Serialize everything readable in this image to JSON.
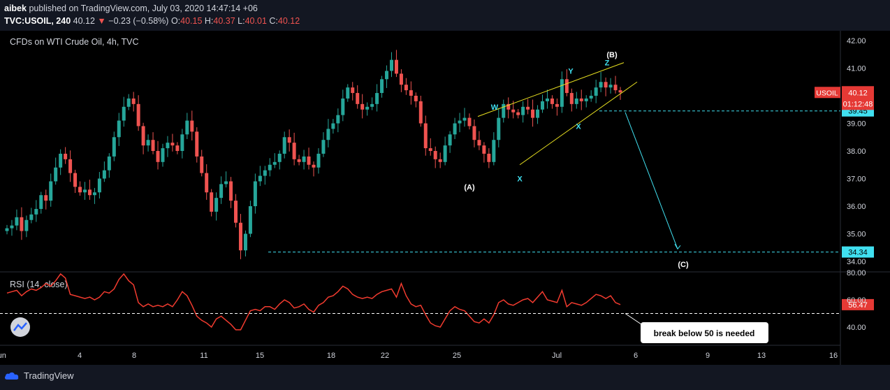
{
  "header": {
    "author": "aibek",
    "published_text": "published on TradingView.com, July 03, 2020 14:47:14 +06",
    "symbol_interval": "TVC:USOIL, 240",
    "last": "40.12",
    "change": "−0.23 (−0.58%)",
    "open_label": "O:",
    "open": "40.15",
    "high_label": "H:",
    "high": "40.37",
    "low_label": "L:",
    "low": "40.01",
    "close_label": "C:",
    "close": "40.12"
  },
  "chart_title": "CFDs on WTI Crude Oil, 4h, TVC",
  "indicator_title": "RSI (14, close)",
  "footer": {
    "brand": "TradingView"
  },
  "colors": {
    "background": "#131722",
    "up": "#26a69a",
    "down": "#ef5350",
    "rsi": "#f23b2f",
    "annotation": "#40e0f0",
    "trendline": "#e8e020",
    "price_tag": "#e53935"
  },
  "chart_data": [
    {
      "type": "candlestick",
      "title": "CFDs on WTI Crude Oil, 4h, TVC",
      "x_tick_labels": [
        "Jun",
        "4",
        "8",
        "11",
        "15",
        "18",
        "22",
        "25",
        "Jul",
        "6",
        "9",
        "13",
        "16"
      ],
      "y_tick_labels": [
        "42.00",
        "41.00",
        "40.00",
        "39.00",
        "38.00",
        "37.00",
        "36.00",
        "35.00",
        "34.00"
      ],
      "ylim": [
        33.6,
        42.4
      ],
      "grid": false,
      "ohlc_close_path": [
        35.2,
        35.3,
        35.6,
        35.1,
        35.5,
        35.7,
        35.9,
        36.4,
        36.2,
        36.9,
        37.4,
        37.9,
        37.7,
        37.2,
        36.7,
        36.5,
        36.6,
        36.4,
        36.5,
        37.0,
        37.3,
        37.8,
        38.5,
        39.1,
        39.6,
        39.9,
        39.7,
        38.9,
        38.2,
        38.4,
        38.0,
        37.6,
        38.1,
        38.3,
        38.2,
        38.0,
        38.6,
        39.1,
        38.7,
        37.8,
        37.2,
        36.5,
        35.8,
        36.3,
        36.8,
        36.9,
        36.2,
        35.4,
        34.4,
        35.0,
        36.0,
        36.9,
        37.1,
        37.3,
        37.5,
        37.6,
        37.9,
        38.5,
        38.3,
        37.7,
        37.6,
        37.8,
        37.5,
        37.4,
        37.9,
        38.4,
        38.8,
        39.0,
        39.3,
        39.9,
        40.3,
        40.1,
        39.7,
        39.5,
        39.6,
        39.7,
        40.1,
        40.6,
        40.9,
        41.3,
        40.8,
        40.4,
        40.2,
        40.0,
        39.8,
        39.0,
        38.1,
        38.0,
        37.7,
        37.6,
        38.2,
        38.6,
        39.0,
        39.1,
        39.2,
        38.9,
        38.4,
        38.2,
        37.9,
        37.6,
        38.4,
        39.2,
        39.7,
        39.5,
        39.4,
        39.3,
        39.6,
        39.5,
        39.2,
        39.5,
        39.8,
        39.9,
        39.7,
        39.6,
        40.6,
        40.1,
        39.7,
        39.9,
        39.8,
        39.9,
        40.0,
        40.3,
        40.5,
        40.3,
        40.4,
        40.2,
        40.12
      ],
      "annotations": [
        {
          "text": "W",
          "price": 39.6
        },
        {
          "text": "X",
          "price": 37.0
        },
        {
          "text": "Y",
          "price": 40.9
        },
        {
          "text": "X",
          "price": 38.9
        },
        {
          "text": "Z",
          "price": 41.2
        },
        {
          "text": "(A)",
          "price": 36.7
        },
        {
          "text": "(B)",
          "price": 41.5
        },
        {
          "text": "(C)",
          "price": 33.9
        }
      ],
      "levels": [
        {
          "label": "39.45",
          "price": 39.45
        },
        {
          "label": "34.34",
          "price": 34.34
        }
      ],
      "price_tag": {
        "symbol": "USOIL",
        "price": "40.12",
        "countdown": "01:12:48"
      }
    },
    {
      "type": "line",
      "title": "RSI (14, close)",
      "y_tick_labels": [
        "80.00",
        "60.00",
        "40.00"
      ],
      "ylim": [
        33,
        82
      ],
      "reference_level": 50,
      "last_value": "56.47",
      "values": [
        65,
        66,
        67,
        63,
        66,
        68,
        67,
        69,
        72,
        70,
        74,
        79,
        76,
        64,
        63,
        62,
        61,
        62,
        60,
        62,
        66,
        65,
        68,
        75,
        79,
        74,
        71,
        58,
        55,
        57,
        55,
        56,
        55,
        57,
        55,
        60,
        66,
        63,
        56,
        48,
        45,
        43,
        40,
        46,
        48,
        45,
        42,
        38,
        38,
        45,
        52,
        53,
        52,
        55,
        55,
        53,
        57,
        60,
        58,
        54,
        55,
        57,
        53,
        51,
        56,
        58,
        62,
        63,
        66,
        70,
        68,
        64,
        62,
        61,
        62,
        61,
        64,
        66,
        67,
        68,
        62,
        72,
        63,
        57,
        55,
        56,
        49,
        43,
        41,
        40,
        46,
        52,
        55,
        53,
        52,
        48,
        44,
        43,
        46,
        43,
        49,
        58,
        60,
        57,
        56,
        58,
        60,
        61,
        58,
        62,
        66,
        60,
        59,
        58,
        67,
        55,
        58,
        57,
        56,
        58,
        61,
        64,
        63,
        61,
        63,
        58,
        56.5
      ],
      "callout": "break below 50 is needed"
    }
  ]
}
